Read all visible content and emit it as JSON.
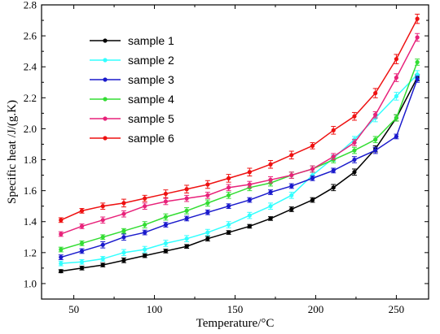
{
  "chart_data": {
    "type": "line",
    "xlabel": "Temperature/°C",
    "ylabel": "Specific heat /J/(g.K)",
    "xlim": [
      30,
      270
    ],
    "ylim": [
      0.9,
      2.8
    ],
    "x_ticks": [
      50,
      100,
      150,
      200,
      250
    ],
    "y_ticks": [
      1.0,
      1.2,
      1.4,
      1.6,
      1.8,
      2.0,
      2.2,
      2.4,
      2.6,
      2.8
    ],
    "x": [
      42,
      55,
      68,
      81,
      94,
      107,
      120,
      133,
      146,
      159,
      172,
      185,
      198,
      211,
      224,
      237,
      250,
      263
    ],
    "legend_position": "top-left",
    "grid": false,
    "error_bars": true,
    "series": [
      {
        "name": "sample 1",
        "color": "#000000",
        "values": [
          1.08,
          1.1,
          1.12,
          1.15,
          1.18,
          1.21,
          1.24,
          1.29,
          1.33,
          1.37,
          1.42,
          1.48,
          1.54,
          1.62,
          1.72,
          1.87,
          2.07,
          2.33
        ],
        "errors": [
          0.01,
          0.012,
          0.012,
          0.015,
          0.012,
          0.012,
          0.012,
          0.015,
          0.012,
          0.012,
          0.012,
          0.015,
          0.015,
          0.02,
          0.02,
          0.02,
          0.02,
          0.02
        ]
      },
      {
        "name": "sample 2",
        "color": "#33ffff",
        "values": [
          1.13,
          1.14,
          1.16,
          1.2,
          1.22,
          1.26,
          1.29,
          1.33,
          1.38,
          1.44,
          1.5,
          1.57,
          1.7,
          1.81,
          1.93,
          2.07,
          2.21,
          2.35
        ],
        "errors": [
          0.015,
          0.015,
          0.015,
          0.02,
          0.02,
          0.02,
          0.02,
          0.02,
          0.02,
          0.02,
          0.02,
          0.02,
          0.02,
          0.02,
          0.02,
          0.025,
          0.025,
          0.025
        ]
      },
      {
        "name": "sample 3",
        "color": "#1a1acc",
        "values": [
          1.17,
          1.21,
          1.25,
          1.3,
          1.33,
          1.38,
          1.42,
          1.46,
          1.5,
          1.54,
          1.59,
          1.63,
          1.68,
          1.73,
          1.8,
          1.86,
          1.95,
          2.32
        ],
        "errors": [
          0.015,
          0.015,
          0.02,
          0.02,
          0.015,
          0.015,
          0.015,
          0.015,
          0.015,
          0.015,
          0.015,
          0.015,
          0.015,
          0.015,
          0.02,
          0.02,
          0.015,
          0.02
        ]
      },
      {
        "name": "sample 4",
        "color": "#33dd33",
        "values": [
          1.22,
          1.26,
          1.3,
          1.34,
          1.38,
          1.43,
          1.47,
          1.52,
          1.57,
          1.62,
          1.65,
          1.7,
          1.74,
          1.8,
          1.86,
          1.93,
          2.07,
          2.43
        ],
        "errors": [
          0.015,
          0.015,
          0.015,
          0.015,
          0.02,
          0.02,
          0.02,
          0.02,
          0.02,
          0.02,
          0.02,
          0.02,
          0.02,
          0.02,
          0.02,
          0.02,
          0.02,
          0.02
        ]
      },
      {
        "name": "sample 5",
        "color": "#e8227a",
        "values": [
          1.32,
          1.37,
          1.41,
          1.45,
          1.5,
          1.53,
          1.55,
          1.57,
          1.62,
          1.64,
          1.67,
          1.7,
          1.74,
          1.82,
          1.91,
          2.09,
          2.33,
          2.59
        ],
        "errors": [
          0.015,
          0.015,
          0.02,
          0.02,
          0.02,
          0.02,
          0.02,
          0.02,
          0.02,
          0.02,
          0.02,
          0.02,
          0.02,
          0.02,
          0.02,
          0.02,
          0.025,
          0.025
        ]
      },
      {
        "name": "sample 6",
        "color": "#ee1111",
        "values": [
          1.41,
          1.47,
          1.5,
          1.52,
          1.55,
          1.58,
          1.61,
          1.64,
          1.68,
          1.72,
          1.77,
          1.83,
          1.89,
          1.99,
          2.08,
          2.23,
          2.45,
          2.71
        ],
        "errors": [
          0.015,
          0.015,
          0.02,
          0.025,
          0.02,
          0.025,
          0.025,
          0.025,
          0.025,
          0.025,
          0.025,
          0.025,
          0.02,
          0.025,
          0.025,
          0.03,
          0.03,
          0.03
        ]
      }
    ]
  }
}
